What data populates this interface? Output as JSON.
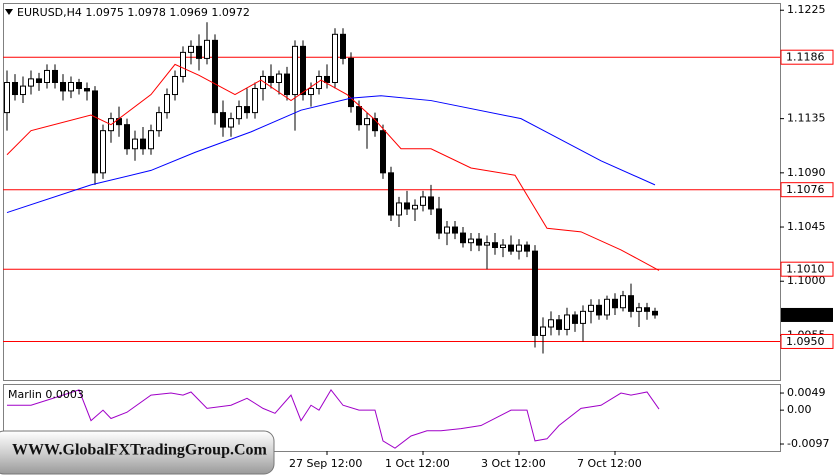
{
  "chart_data": {
    "type": "candlestick",
    "symbol": "EURUSD,H4",
    "categories": [
      null,
      null,
      null,
      null,
      null,
      null,
      null,
      null,
      null,
      null,
      null,
      null,
      null,
      null,
      null,
      null,
      null,
      null,
      null,
      null,
      null,
      null,
      null,
      null,
      null,
      null,
      null,
      null,
      null,
      null,
      null,
      null,
      null,
      null,
      null,
      null,
      null,
      null,
      null,
      null,
      "27 Sep 12:00",
      null,
      null,
      null,
      null,
      null,
      null,
      null,
      null,
      null,
      null,
      null,
      "1 Oct 12:00",
      null,
      null,
      null,
      null,
      null,
      null,
      null,
      null,
      null,
      null,
      null,
      "3 Oct 12:00",
      null,
      null,
      null,
      null,
      null,
      null,
      null,
      null,
      null,
      null,
      null,
      "7 Oct 12:00",
      null,
      null,
      null,
      null,
      null
    ],
    "open": [
      1.114,
      1.1165,
      1.1155,
      1.1162,
      1.1168,
      1.1165,
      1.1175,
      1.1165,
      1.1158,
      1.1165,
      1.116,
      1.1158,
      1.109,
      1.1125,
      1.1135,
      1.113,
      1.111,
      1.1118,
      1.111,
      1.1125,
      1.114,
      1.1155,
      1.117,
      1.119,
      1.1195,
      1.1185,
      1.12,
      1.114,
      1.1128,
      1.1135,
      1.1145,
      1.114,
      1.116,
      1.117,
      1.1165,
      1.1172,
      1.1155,
      1.1195,
      1.1155,
      1.116,
      1.117,
      1.1165,
      1.1205,
      1.1185,
      1.1145,
      1.113,
      1.1135,
      1.1125,
      1.109,
      1.1055,
      1.1065,
      1.106,
      1.1063,
      1.107,
      1.106,
      1.104,
      1.1045,
      1.104,
      1.1032,
      1.1035,
      1.103,
      1.1032,
      1.1028,
      1.103,
      1.1025,
      1.103,
      1.1025,
      1.0955,
      1.0962,
      1.0968,
      1.096,
      1.0972,
      1.0965,
      1.0975,
      1.098,
      1.0972,
      1.0985,
      1.0978,
      1.0988,
      1.0975,
      1.0978,
      1.0975
    ],
    "high": [
      1.1175,
      1.1172,
      1.117,
      1.1175,
      1.1173,
      1.118,
      1.118,
      1.1172,
      1.117,
      1.1168,
      1.1165,
      1.1162,
      1.113,
      1.114,
      1.1145,
      1.1135,
      1.1125,
      1.1128,
      1.113,
      1.1145,
      1.116,
      1.1175,
      1.1195,
      1.12,
      1.1205,
      1.1215,
      1.1205,
      1.115,
      1.114,
      1.115,
      1.116,
      1.1165,
      1.1175,
      1.118,
      1.1175,
      1.1178,
      1.12,
      1.12,
      1.1165,
      1.1175,
      1.118,
      1.121,
      1.121,
      1.119,
      1.115,
      1.114,
      1.114,
      1.113,
      1.1095,
      1.107,
      1.1075,
      1.1068,
      1.1075,
      1.108,
      1.107,
      1.105,
      1.105,
      1.1045,
      1.104,
      1.104,
      1.1038,
      1.104,
      1.1035,
      1.1038,
      1.1035,
      1.1033,
      1.103,
      1.097,
      1.0975,
      1.0972,
      1.0978,
      1.0975,
      1.098,
      1.0985,
      1.0985,
      1.0988,
      1.099,
      1.0992,
      1.0998,
      1.0982,
      1.0982,
      1.0978
    ],
    "low": [
      1.1125,
      1.115,
      1.1148,
      1.1155,
      1.1158,
      1.116,
      1.116,
      1.115,
      1.1152,
      1.1155,
      1.115,
      1.108,
      1.1085,
      1.1115,
      1.112,
      1.1105,
      1.11,
      1.1105,
      1.1105,
      1.112,
      1.1135,
      1.115,
      1.1165,
      1.118,
      1.1175,
      1.118,
      1.113,
      1.112,
      1.112,
      1.113,
      1.1135,
      1.1135,
      1.115,
      1.116,
      1.1155,
      1.115,
      1.1125,
      1.115,
      1.1145,
      1.1155,
      1.116,
      1.116,
      1.118,
      1.114,
      1.1125,
      1.111,
      1.112,
      1.1085,
      1.105,
      1.1045,
      1.1055,
      1.105,
      1.1058,
      1.1055,
      1.1035,
      1.103,
      1.1035,
      1.1028,
      1.1025,
      1.1025,
      1.101,
      1.1022,
      1.102,
      1.1022,
      1.1018,
      1.102,
      1.0945,
      1.094,
      1.0955,
      1.0955,
      1.0955,
      1.0958,
      1.095,
      1.0965,
      1.0968,
      1.0968,
      1.0972,
      1.0975,
      1.097,
      1.0962,
      1.0968,
      1.0969
    ],
    "close": [
      1.1165,
      1.1155,
      1.1162,
      1.1168,
      1.1165,
      1.1175,
      1.1165,
      1.1158,
      1.1165,
      1.116,
      1.1158,
      1.109,
      1.1125,
      1.1135,
      1.113,
      1.111,
      1.1118,
      1.111,
      1.1125,
      1.114,
      1.1155,
      1.117,
      1.119,
      1.1195,
      1.1185,
      1.12,
      1.114,
      1.1128,
      1.1135,
      1.1145,
      1.114,
      1.116,
      1.117,
      1.1165,
      1.1172,
      1.1155,
      1.1195,
      1.1155,
      1.116,
      1.117,
      1.1165,
      1.1205,
      1.1185,
      1.1145,
      1.113,
      1.1135,
      1.1125,
      1.109,
      1.1055,
      1.1065,
      1.106,
      1.1063,
      1.107,
      1.106,
      1.104,
      1.1045,
      1.104,
      1.1032,
      1.1035,
      1.103,
      1.1032,
      1.1028,
      1.103,
      1.1025,
      1.103,
      1.1025,
      1.0955,
      1.0962,
      1.0968,
      1.096,
      1.0972,
      1.0965,
      1.0975,
      1.098,
      1.0972,
      1.0985,
      1.0978,
      1.0988,
      1.0975,
      1.0978,
      1.0975,
      1.0972
    ],
    "series": [
      {
        "color": "#ff0000",
        "x": [
          0,
          3,
          10.5,
          13,
          18,
          21,
          24,
          28.5,
          31.75,
          35.5,
          39.25,
          42.5,
          46,
          49.25,
          53,
          58,
          63.5,
          67.5,
          71.75,
          76.75,
          81.5
        ],
        "values": [
          1.1105,
          1.1125,
          1.1138,
          1.113,
          1.1155,
          1.118,
          1.1171,
          1.1155,
          1.1167,
          1.115,
          1.1167,
          1.1155,
          1.1134,
          1.111,
          1.111,
          1.1094,
          1.1088,
          1.1044,
          1.1041,
          1.1026,
          1.1009
        ]
      },
      {
        "color": "#0000ff",
        "x": [
          0,
          10.5,
          18,
          23.5,
          30.5,
          36.75,
          43,
          46.75,
          53,
          64.25,
          74.25,
          81
        ],
        "values": [
          1.1057,
          1.108,
          1.1092,
          1.1107,
          1.1124,
          1.1142,
          1.1152,
          1.1154,
          1.115,
          1.1135,
          1.11,
          1.108
        ]
      }
    ],
    "ylim": [
      1.0918,
      1.1231
    ],
    "yticks": [
      1.1225,
      1.1135,
      {
        "value": 1.109,
        "label": "1.1090"
      },
      1.1045,
      {
        "value": 1.1,
        "label": "1.1000"
      },
      1.0955
    ],
    "levels": [
      1.1186,
      1.1076,
      {
        "value": 1.101,
        "label": "1.1010"
      },
      {
        "value": 1.095,
        "label": "1.0950"
      }
    ],
    "level_color": "#ff0000",
    "oscillator": {
      "label": "Marlin 0.0003",
      "color": "#a000c8",
      "x": [
        0,
        3,
        7,
        9,
        10.5,
        12,
        13,
        15,
        18,
        20.5,
        22,
        23,
        25,
        28,
        30,
        32,
        33.5,
        35.5,
        36.75,
        38,
        39,
        40.5,
        42,
        44,
        46,
        47,
        48.5,
        50.5,
        52.5,
        54.25,
        56.75,
        59.25,
        63,
        65,
        66,
        67.5,
        69,
        71.75,
        74.25,
        76.75,
        78,
        80,
        81.5
      ],
      "values": [
        0.0014,
        0.0014,
        0.0043,
        0.0058,
        -0.003,
        0,
        -0.0024,
        -0.0006,
        0.0043,
        0.0049,
        0.0043,
        0.0052,
        0.0005,
        0.0014,
        0.0034,
        0.0005,
        -0.0009,
        0.0043,
        -0.003,
        0.0014,
        0,
        0.0058,
        0.0014,
        0,
        0,
        -0.0088,
        -0.0109,
        -0.0074,
        -0.0059,
        -0.0059,
        -0.0053,
        -0.0044,
        0,
        0,
        -0.0088,
        -0.0082,
        -0.0044,
        0.0005,
        0.0014,
        0.0049,
        0.0043,
        0.0052,
        0.0003
      ],
      "ylim": [
        -0.0117,
        0.0072
      ],
      "yticks": [
        0.0049,
        {
          "value": 0,
          "label": "0.00"
        },
        -0.0097
      ]
    },
    "watermark": "WWW.GlobalFXTradingGroup.Com"
  }
}
